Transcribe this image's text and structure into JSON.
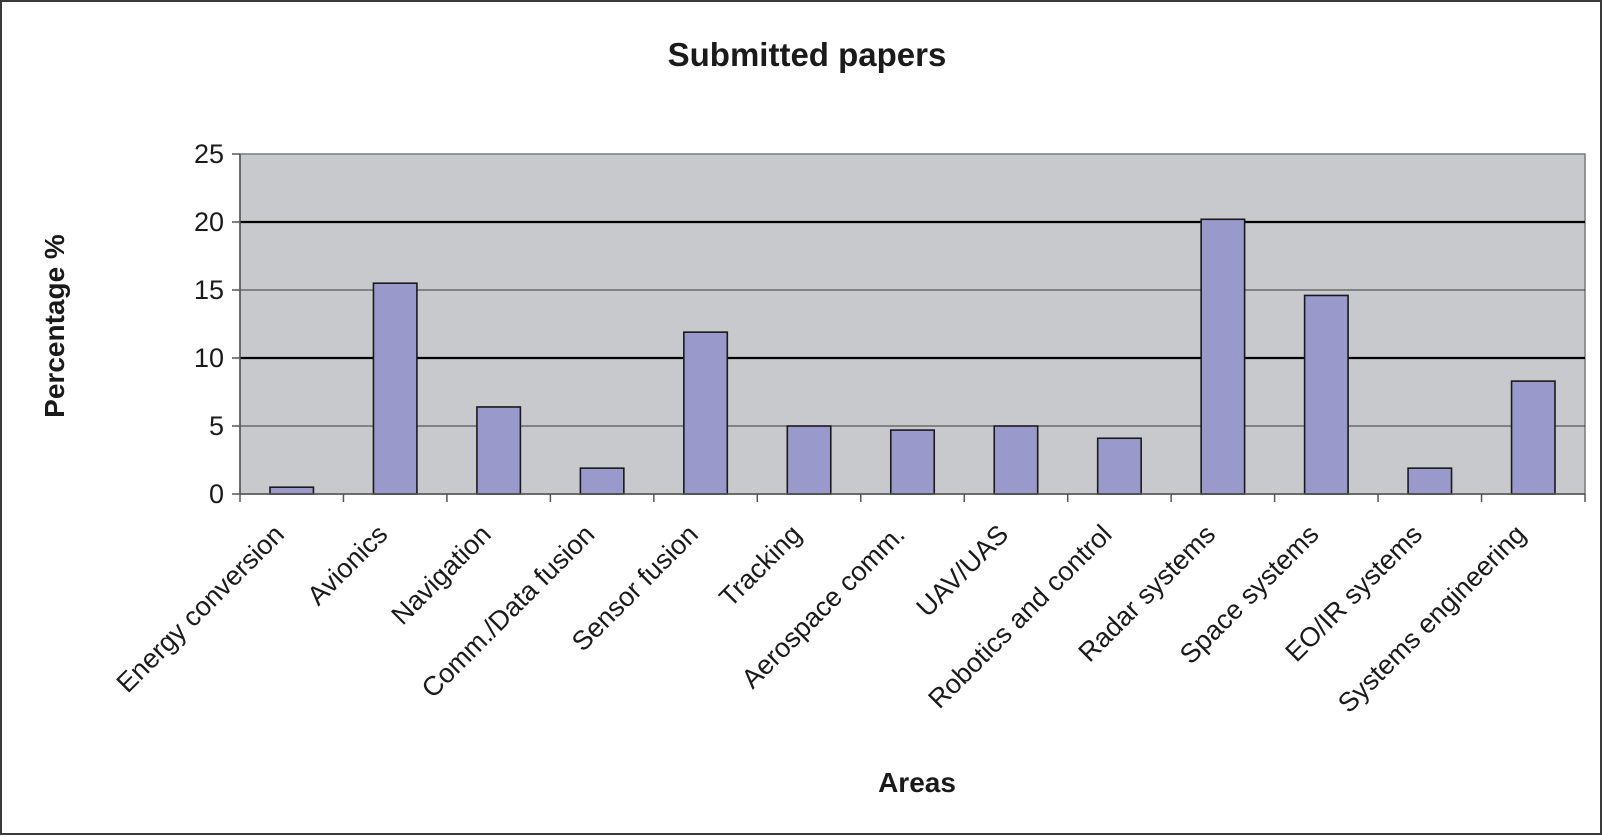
{
  "chart_data": {
    "type": "bar",
    "title": "Submitted papers",
    "xlabel": "Areas",
    "ylabel": "Percentage %",
    "ylim": [
      0,
      25
    ],
    "yticks": [
      0,
      5,
      10,
      15,
      20,
      25
    ],
    "major_gridlines": [
      10,
      20
    ],
    "minor_gridlines": [
      5,
      15
    ],
    "legend": "none",
    "categories": [
      "Energy conversion",
      "Avionics",
      "Navigation",
      "Comm./Data fusion",
      "Sensor fusion",
      "Tracking",
      "Aerospace comm.",
      "UAV/UAS",
      "Robotics and control",
      "Radar systems",
      "Space systems",
      "EO/IR systems",
      "Systems engineering"
    ],
    "values": [
      0.5,
      15.5,
      6.4,
      1.9,
      11.9,
      5.0,
      4.7,
      5.0,
      4.1,
      20.2,
      14.6,
      1.9,
      8.3
    ]
  },
  "colors": {
    "plot_background": "#c8c9cc",
    "bar_fill": "#9999cc",
    "bar_stroke": "#1a1a1a",
    "major_grid": "#000000",
    "minor_grid": "#3c3c3c"
  }
}
